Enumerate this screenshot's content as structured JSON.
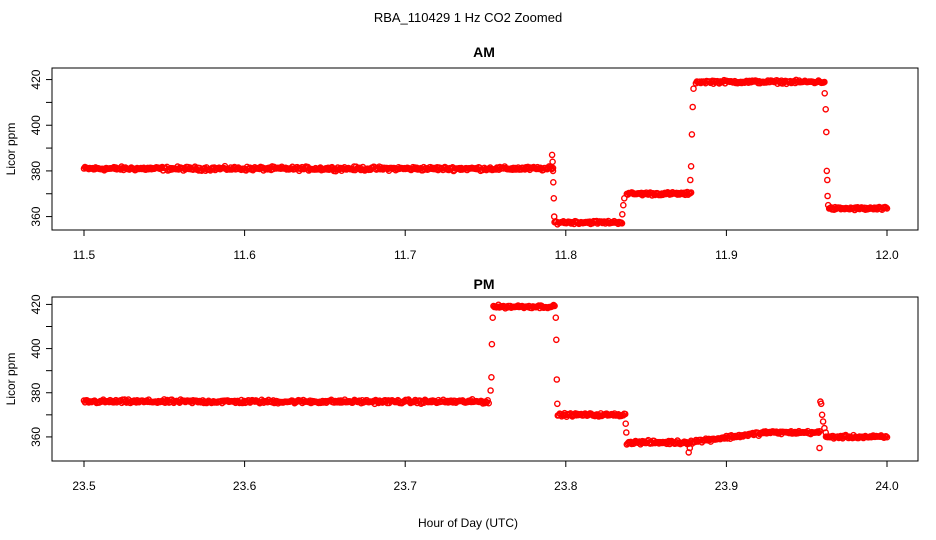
{
  "figure": {
    "title": "RBA_110429  1 Hz CO2 Zoomed",
    "xlabel": "Hour of Day (UTC)"
  },
  "colors": {
    "points": "#ff0000",
    "axes": "#000000"
  },
  "chart_data": [
    {
      "type": "scatter",
      "title": "AM",
      "ylabel": "Licor ppm",
      "xlabel": "Hour of Day (UTC)",
      "xlim": [
        11.5,
        12.0
      ],
      "ylim": [
        355,
        422
      ],
      "xticks": [
        11.5,
        11.6,
        11.7,
        11.8,
        11.9,
        12.0
      ],
      "xtick_labels": [
        "11.5",
        "11.6",
        "11.7",
        "11.8",
        "11.9",
        "12.0"
      ],
      "yticks": [
        360,
        380,
        400,
        420
      ],
      "ytick_labels": [
        "360",
        "380",
        "400",
        "420"
      ],
      "grid": false,
      "segments": [
        {
          "x_start": 11.5,
          "x_end": 11.792,
          "y": 381,
          "noise": 1.2
        },
        {
          "x_start": 11.793,
          "x_end": 11.835,
          "y": 357.5,
          "noise": 1.0
        },
        {
          "x_start": 11.838,
          "x_end": 11.878,
          "y": 370,
          "noise": 1.0
        },
        {
          "x_start": 11.881,
          "x_end": 11.961,
          "y": 419,
          "noise": 1.0
        },
        {
          "x_start": 11.964,
          "x_end": 12.0,
          "y": 363.5,
          "noise": 1.0
        }
      ],
      "transition_points": [
        {
          "x": 11.7915,
          "y": 387
        },
        {
          "x": 11.7918,
          "y": 384
        },
        {
          "x": 11.792,
          "y": 380
        },
        {
          "x": 11.7922,
          "y": 375
        },
        {
          "x": 11.7925,
          "y": 368
        },
        {
          "x": 11.7928,
          "y": 360
        },
        {
          "x": 11.8352,
          "y": 361
        },
        {
          "x": 11.8358,
          "y": 365
        },
        {
          "x": 11.8364,
          "y": 368
        },
        {
          "x": 11.8775,
          "y": 376
        },
        {
          "x": 11.878,
          "y": 382
        },
        {
          "x": 11.8785,
          "y": 396
        },
        {
          "x": 11.879,
          "y": 408
        },
        {
          "x": 11.8795,
          "y": 416
        },
        {
          "x": 11.9612,
          "y": 414
        },
        {
          "x": 11.9618,
          "y": 407
        },
        {
          "x": 11.9622,
          "y": 397
        },
        {
          "x": 11.9625,
          "y": 380
        },
        {
          "x": 11.9628,
          "y": 376
        },
        {
          "x": 11.963,
          "y": 369
        },
        {
          "x": 11.9634,
          "y": 365
        }
      ]
    },
    {
      "type": "scatter",
      "title": "PM",
      "ylabel": "Licor ppm",
      "xlabel": "Hour of Day (UTC)",
      "xlim": [
        23.5,
        24.0
      ],
      "ylim": [
        350,
        422
      ],
      "xticks": [
        23.5,
        23.6,
        23.7,
        23.8,
        23.9,
        24.0
      ],
      "xtick_labels": [
        "23.5",
        "23.6",
        "23.7",
        "23.8",
        "23.9",
        "24.0"
      ],
      "yticks": [
        360,
        380,
        400,
        420
      ],
      "ytick_labels": [
        "360",
        "380",
        "400",
        "420"
      ],
      "grid": false,
      "segments": [
        {
          "x_start": 23.5,
          "x_end": 23.752,
          "y": 376,
          "noise": 1.2
        },
        {
          "x_start": 23.755,
          "x_end": 23.793,
          "y": 419,
          "noise": 1.0
        },
        {
          "x_start": 23.795,
          "x_end": 23.837,
          "y": 370,
          "noise": 1.0
        },
        {
          "x_start": 23.838,
          "x_end": 23.875,
          "y": 357.5,
          "noise": 1.2
        },
        {
          "x_start": 23.875,
          "x_end": 23.925,
          "y_start": 357.5,
          "y_end": 362,
          "noise": 1.2
        },
        {
          "x_start": 23.925,
          "x_end": 23.958,
          "y": 362,
          "noise": 1.0
        },
        {
          "x_start": 23.962,
          "x_end": 24.0,
          "y": 360,
          "noise": 1.0
        }
      ],
      "transition_points": [
        {
          "x": 23.7532,
          "y": 381
        },
        {
          "x": 23.7537,
          "y": 387
        },
        {
          "x": 23.754,
          "y": 402
        },
        {
          "x": 23.7545,
          "y": 414
        },
        {
          "x": 23.7938,
          "y": 414
        },
        {
          "x": 23.7941,
          "y": 404
        },
        {
          "x": 23.7944,
          "y": 386
        },
        {
          "x": 23.7947,
          "y": 375
        },
        {
          "x": 23.8373,
          "y": 366
        },
        {
          "x": 23.8377,
          "y": 362
        },
        {
          "x": 23.8765,
          "y": 353
        },
        {
          "x": 23.8772,
          "y": 355
        },
        {
          "x": 23.958,
          "y": 355
        },
        {
          "x": 23.9585,
          "y": 376
        },
        {
          "x": 23.959,
          "y": 375
        },
        {
          "x": 23.9596,
          "y": 370
        },
        {
          "x": 23.9602,
          "y": 367
        },
        {
          "x": 23.961,
          "y": 364
        },
        {
          "x": 23.9618,
          "y": 362
        }
      ]
    }
  ]
}
